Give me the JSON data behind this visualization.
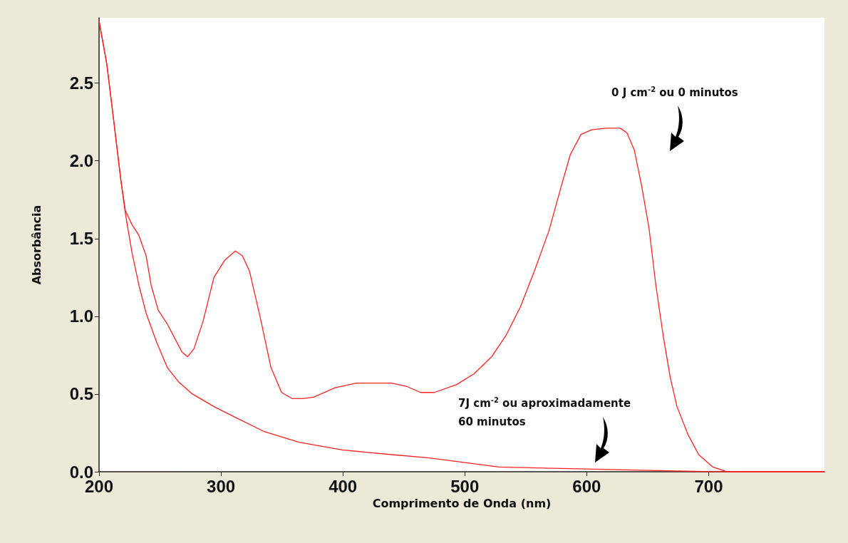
{
  "chart_data": {
    "type": "line",
    "xlabel": "Comprimento de Onda (nm)",
    "ylabel": "Absorbância",
    "xlim": [
      200,
      795
    ],
    "xticks": [
      200,
      300,
      400,
      500,
      600,
      700
    ],
    "ylim": [
      0,
      2.92
    ],
    "yticks": [
      {
        "value": 0,
        "label": "0.0"
      },
      {
        "value": 0.5,
        "label": "0.5"
      },
      {
        "value": 1,
        "label": "1.0"
      },
      {
        "value": 1.5,
        "label": "1.5"
      },
      {
        "value": 2,
        "label": "2.0"
      },
      {
        "value": 2.5,
        "label": "2.5"
      }
    ],
    "grid": false,
    "marker": "none",
    "line_style": "solid",
    "series": [
      {
        "color": "#ff2020",
        "x": [
          200,
          206.4,
          212,
          218,
          221.6,
          227,
          232.7,
          238.6,
          242.7,
          248.5,
          256,
          262,
          268,
          272.5,
          277.8,
          285.4,
          294.2,
          303,
          311.7,
          317.5,
          323.4,
          332,
          341,
          349.7,
          358.5,
          367,
          376,
          393.6,
          411,
          440,
          452,
          463.7,
          475,
          493,
          507.6,
          522,
          534,
          545.6,
          557,
          569,
          577.8,
          586.5,
          595.3,
          604,
          615.8,
          627.5,
          633,
          639,
          645,
          651,
          656.7,
          662.6,
          668.4,
          674,
          683,
          691.8,
          703.5,
          715,
          738.6,
          795
        ],
        "values": [
          2.9,
          2.62,
          2.26,
          1.87,
          1.68,
          1.59,
          1.52,
          1.39,
          1.2,
          1.04,
          0.95,
          0.86,
          0.77,
          0.74,
          0.79,
          0.97,
          1.25,
          1.36,
          1.42,
          1.39,
          1.29,
          1.0,
          0.67,
          0.51,
          0.47,
          0.47,
          0.48,
          0.54,
          0.57,
          0.57,
          0.55,
          0.51,
          0.51,
          0.56,
          0.63,
          0.74,
          0.88,
          1.06,
          1.29,
          1.55,
          1.8,
          2.04,
          2.17,
          2.2,
          2.21,
          2.21,
          2.18,
          2.07,
          1.84,
          1.57,
          1.2,
          0.88,
          0.61,
          0.42,
          0.24,
          0.11,
          0.03,
          0,
          0,
          0
        ]
      },
      {
        "color": "#ff2020",
        "x": [
          200,
          206.4,
          212,
          218,
          221.6,
          227,
          232.7,
          238.6,
          247.4,
          256,
          265,
          276.6,
          294,
          311.7,
          335,
          364,
          399.4,
          440,
          469.6,
          499,
          528,
          586.5,
          645,
          703.5,
          795
        ],
        "values": [
          2.9,
          2.62,
          2.26,
          1.87,
          1.66,
          1.41,
          1.2,
          1.02,
          0.83,
          0.67,
          0.58,
          0.5,
          0.42,
          0.35,
          0.26,
          0.19,
          0.14,
          0.11,
          0.09,
          0.06,
          0.03,
          0.02,
          0.01,
          0,
          0
        ]
      }
    ],
    "annotations": [
      "0 J cm$^{-2}$ ou 0 minutos",
      "7J cm$^{-2}$ ou aproximadamente\n60 minutos"
    ]
  }
}
